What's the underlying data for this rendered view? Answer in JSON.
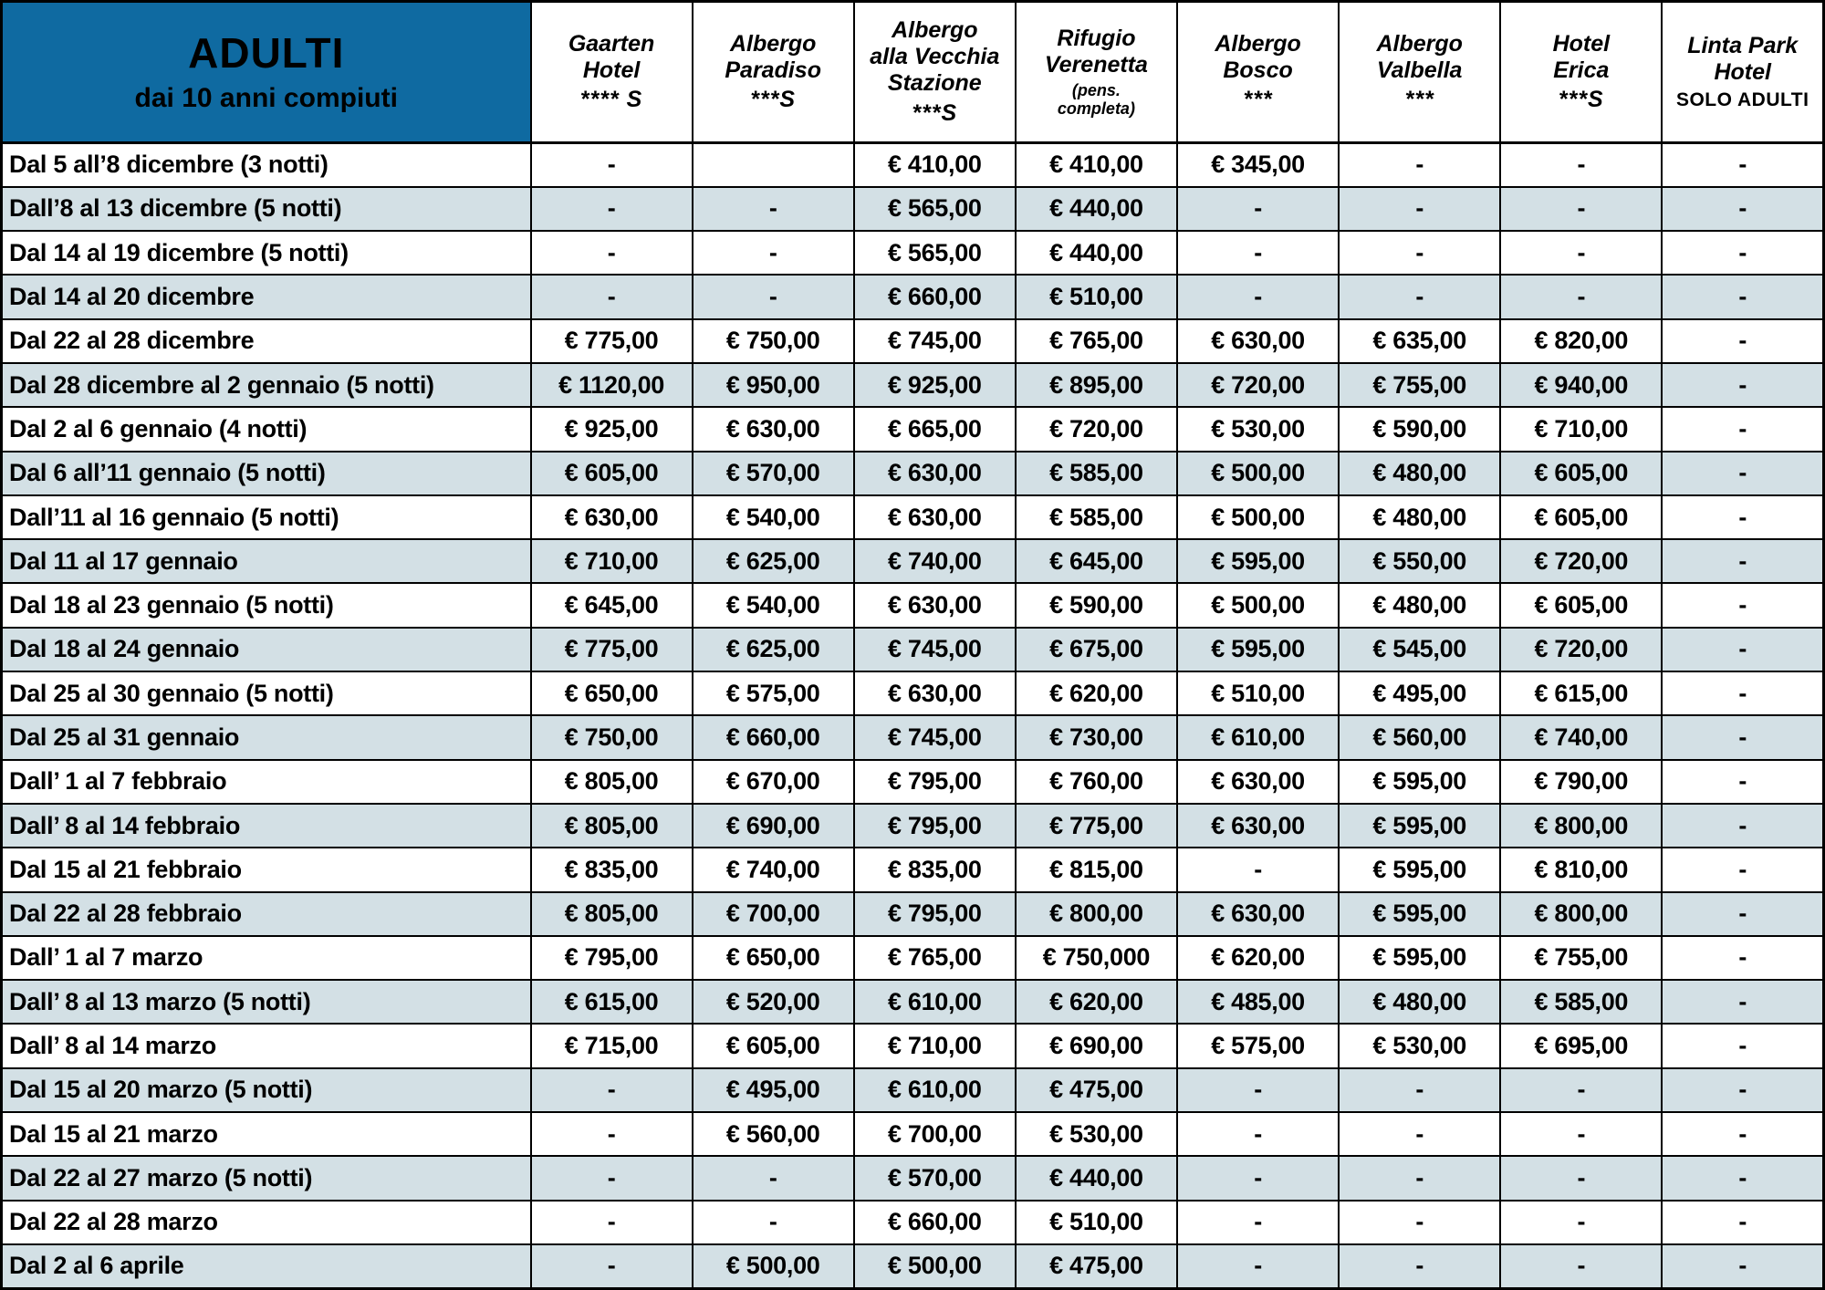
{
  "table_title": {
    "title": "ADULTI",
    "subtitle": "dai 10 anni compiuti"
  },
  "colors": {
    "header_bg": "#0f6aa1",
    "row_alt": "#d3e0e5",
    "border": "#000000"
  },
  "columns": [
    {
      "id": "gaarten-hotel",
      "name": "Gaarten\nHotel",
      "sub": "**** S",
      "sub_style": "stars"
    },
    {
      "id": "albergo-paradiso",
      "name": "Albergo\nParadiso",
      "sub": "***S",
      "sub_style": "stars"
    },
    {
      "id": "albergo-alla-vecchia-stazione",
      "name": "Albergo\nalla Vecchia\nStazione",
      "sub": "***S",
      "sub_style": "stars"
    },
    {
      "id": "rifugio-verenetta",
      "name": "Rifugio\nVerenetta",
      "sub": "(pens.\ncompleta)",
      "sub_style": "small-italic"
    },
    {
      "id": "albergo-bosco",
      "name": "Albergo\nBosco",
      "sub": "***",
      "sub_style": "stars"
    },
    {
      "id": "albergo-valbella",
      "name": "Albergo\nValbella",
      "sub": "***",
      "sub_style": "stars"
    },
    {
      "id": "hotel-erica",
      "name": "Hotel\nErica",
      "sub": "***S",
      "sub_style": "stars"
    },
    {
      "id": "linta-park-hotel",
      "name": "Linta Park\nHotel",
      "sub": "SOLO ADULTI",
      "sub_style": "caps"
    }
  ],
  "rows": [
    {
      "label": "Dal 5 all’8 dicembre (3 notti)",
      "values": [
        "-",
        "",
        "€ 410,00",
        "€ 410,00",
        "€ 345,00",
        "-",
        "-",
        "-"
      ]
    },
    {
      "label": "Dall’8 al 13 dicembre (5 notti)",
      "values": [
        "-",
        "-",
        "€ 565,00",
        "€ 440,00",
        "-",
        "-",
        "-",
        "-"
      ]
    },
    {
      "label": "Dal 14 al 19 dicembre (5 notti)",
      "values": [
        "-",
        "-",
        "€ 565,00",
        "€ 440,00",
        "-",
        "-",
        "-",
        "-"
      ]
    },
    {
      "label": "Dal 14 al 20 dicembre",
      "values": [
        "-",
        "-",
        "€ 660,00",
        "€ 510,00",
        "-",
        "-",
        "-",
        "-"
      ]
    },
    {
      "label": "Dal 22 al 28 dicembre",
      "values": [
        "€ 775,00",
        "€ 750,00",
        "€ 745,00",
        "€ 765,00",
        "€ 630,00",
        "€ 635,00",
        "€ 820,00",
        "-"
      ]
    },
    {
      "label": "Dal 28 dicembre al 2 gennaio (5 notti)",
      "values": [
        "€ 1120,00",
        "€ 950,00",
        "€ 925,00",
        "€ 895,00",
        "€ 720,00",
        "€ 755,00",
        "€ 940,00",
        "-"
      ]
    },
    {
      "label": "Dal 2 al 6 gennaio (4 notti)",
      "values": [
        "€ 925,00",
        "€ 630,00",
        "€ 665,00",
        "€ 720,00",
        "€ 530,00",
        "€ 590,00",
        "€ 710,00",
        "-"
      ]
    },
    {
      "label": "Dal 6 all’11 gennaio (5 notti)",
      "values": [
        "€ 605,00",
        "€ 570,00",
        "€ 630,00",
        "€ 585,00",
        "€ 500,00",
        "€ 480,00",
        "€ 605,00",
        "-"
      ]
    },
    {
      "label": "Dall’11 al 16 gennaio (5 notti)",
      "values": [
        "€ 630,00",
        "€ 540,00",
        "€ 630,00",
        "€ 585,00",
        "€ 500,00",
        "€ 480,00",
        "€ 605,00",
        "-"
      ]
    },
    {
      "label": "Dal 11 al 17 gennaio",
      "values": [
        "€ 710,00",
        "€ 625,00",
        "€ 740,00",
        "€ 645,00",
        "€ 595,00",
        "€ 550,00",
        "€ 720,00",
        "-"
      ]
    },
    {
      "label": "Dal 18 al 23 gennaio (5 notti)",
      "values": [
        "€ 645,00",
        "€ 540,00",
        "€ 630,00",
        "€ 590,00",
        "€ 500,00",
        "€ 480,00",
        "€ 605,00",
        "-"
      ]
    },
    {
      "label": "Dal 18 al 24 gennaio",
      "values": [
        "€ 775,00",
        "€ 625,00",
        "€ 745,00",
        "€ 675,00",
        "€ 595,00",
        "€ 545,00",
        "€ 720,00",
        "-"
      ]
    },
    {
      "label": "Dal 25 al 30 gennaio (5 notti)",
      "values": [
        "€ 650,00",
        "€ 575,00",
        "€ 630,00",
        "€ 620,00",
        "€ 510,00",
        "€ 495,00",
        "€ 615,00",
        "-"
      ]
    },
    {
      "label": "Dal 25 al 31 gennaio",
      "values": [
        "€ 750,00",
        "€ 660,00",
        "€ 745,00",
        "€ 730,00",
        "€ 610,00",
        "€ 560,00",
        "€ 740,00",
        "-"
      ]
    },
    {
      "label": "Dall’ 1 al 7 febbraio",
      "values": [
        "€ 805,00",
        "€ 670,00",
        "€ 795,00",
        "€ 760,00",
        "€ 630,00",
        "€ 595,00",
        "€ 790,00",
        "-"
      ]
    },
    {
      "label": "Dall’ 8 al 14 febbraio",
      "values": [
        "€ 805,00",
        "€ 690,00",
        "€ 795,00",
        "€ 775,00",
        "€ 630,00",
        "€ 595,00",
        "€ 800,00",
        "-"
      ]
    },
    {
      "label": "Dal 15 al 21 febbraio",
      "values": [
        "€ 835,00",
        "€ 740,00",
        "€ 835,00",
        "€ 815,00",
        "-",
        "€ 595,00",
        "€ 810,00",
        "-"
      ]
    },
    {
      "label": "Dal 22 al 28 febbraio",
      "values": [
        "€ 805,00",
        "€ 700,00",
        "€ 795,00",
        "€ 800,00",
        "€ 630,00",
        "€ 595,00",
        "€ 800,00",
        "-"
      ]
    },
    {
      "label": "Dall’ 1 al 7 marzo",
      "values": [
        "€ 795,00",
        "€ 650,00",
        "€ 765,00",
        "€ 750,000",
        "€ 620,00",
        "€ 595,00",
        "€ 755,00",
        "-"
      ]
    },
    {
      "label": "Dall’ 8 al 13 marzo (5 notti)",
      "values": [
        "€ 615,00",
        "€ 520,00",
        "€ 610,00",
        "€ 620,00",
        "€ 485,00",
        "€ 480,00",
        "€ 585,00",
        "-"
      ]
    },
    {
      "label": "Dall’ 8 al 14 marzo",
      "values": [
        "€ 715,00",
        "€ 605,00",
        "€ 710,00",
        "€ 690,00",
        "€ 575,00",
        "€ 530,00",
        "€ 695,00",
        "-"
      ]
    },
    {
      "label": "Dal 15 al 20 marzo (5 notti)",
      "values": [
        "-",
        "€ 495,00",
        "€ 610,00",
        "€ 475,00",
        "-",
        "-",
        "-",
        "-"
      ]
    },
    {
      "label": "Dal 15 al 21 marzo",
      "values": [
        "-",
        "€ 560,00",
        "€ 700,00",
        "€ 530,00",
        "-",
        "-",
        "-",
        "-"
      ]
    },
    {
      "label": "Dal 22 al 27 marzo (5 notti)",
      "values": [
        "-",
        "-",
        "€ 570,00",
        "€ 440,00",
        "-",
        "-",
        "-",
        "-"
      ]
    },
    {
      "label": "Dal 22 al 28 marzo",
      "values": [
        "-",
        "-",
        "€ 660,00",
        "€ 510,00",
        "-",
        "-",
        "-",
        "-"
      ]
    },
    {
      "label": "Dal 2 al 6 aprile",
      "values": [
        "-",
        "€ 500,00",
        "€ 500,00",
        "€ 475,00",
        "-",
        "-",
        "-",
        "-"
      ]
    }
  ]
}
